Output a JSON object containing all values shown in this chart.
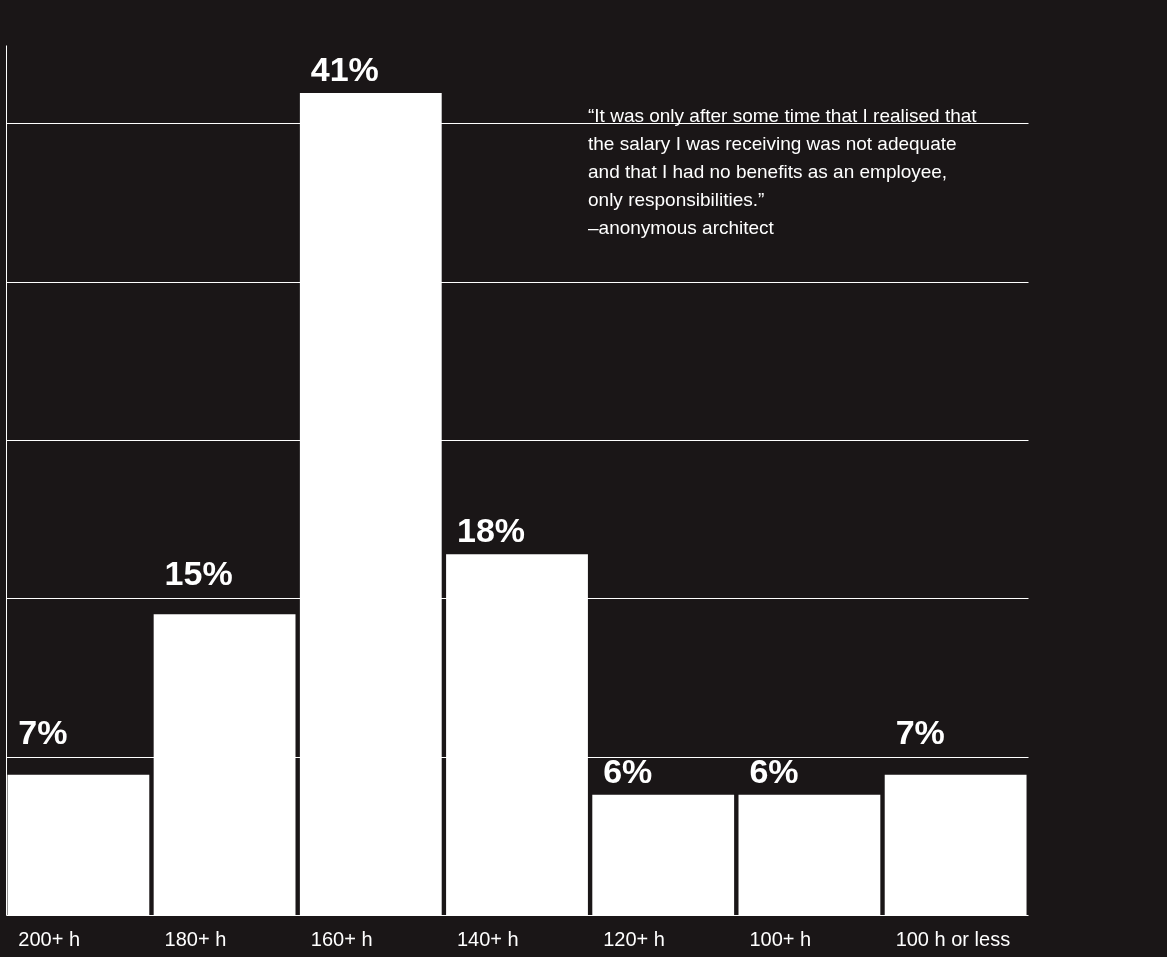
{
  "chart_data": {
    "type": "bar",
    "categories": [
      "200+ h",
      "180+ h",
      "160+ h",
      "140+ h",
      "120+ h",
      "100+ h",
      "100 h or less"
    ],
    "values": [
      7,
      15,
      41,
      18,
      6,
      6,
      7
    ],
    "color": "#ffffff",
    "value_labels": [
      "7%",
      "15%",
      "41%",
      "18%",
      "6%",
      "6%",
      "7%"
    ],
    "ylim": [
      0,
      43.4
    ],
    "yticks": [
      {
        "value": 7.9,
        "label": null
      },
      {
        "value": 15.8,
        "label": null
      },
      {
        "value": 23.7,
        "label": null
      },
      {
        "value": 31.6,
        "label": null
      },
      {
        "value": 39.5,
        "label": null
      }
    ],
    "tick_labels": "x",
    "grid": "y",
    "annotations": [
      "“It was only after some time that I realised that\nthe salary I was receiving was not adequate\nand that I had no benefits as an employee,\nonly responsibilities.”\n\n–anonymous architect"
    ]
  }
}
